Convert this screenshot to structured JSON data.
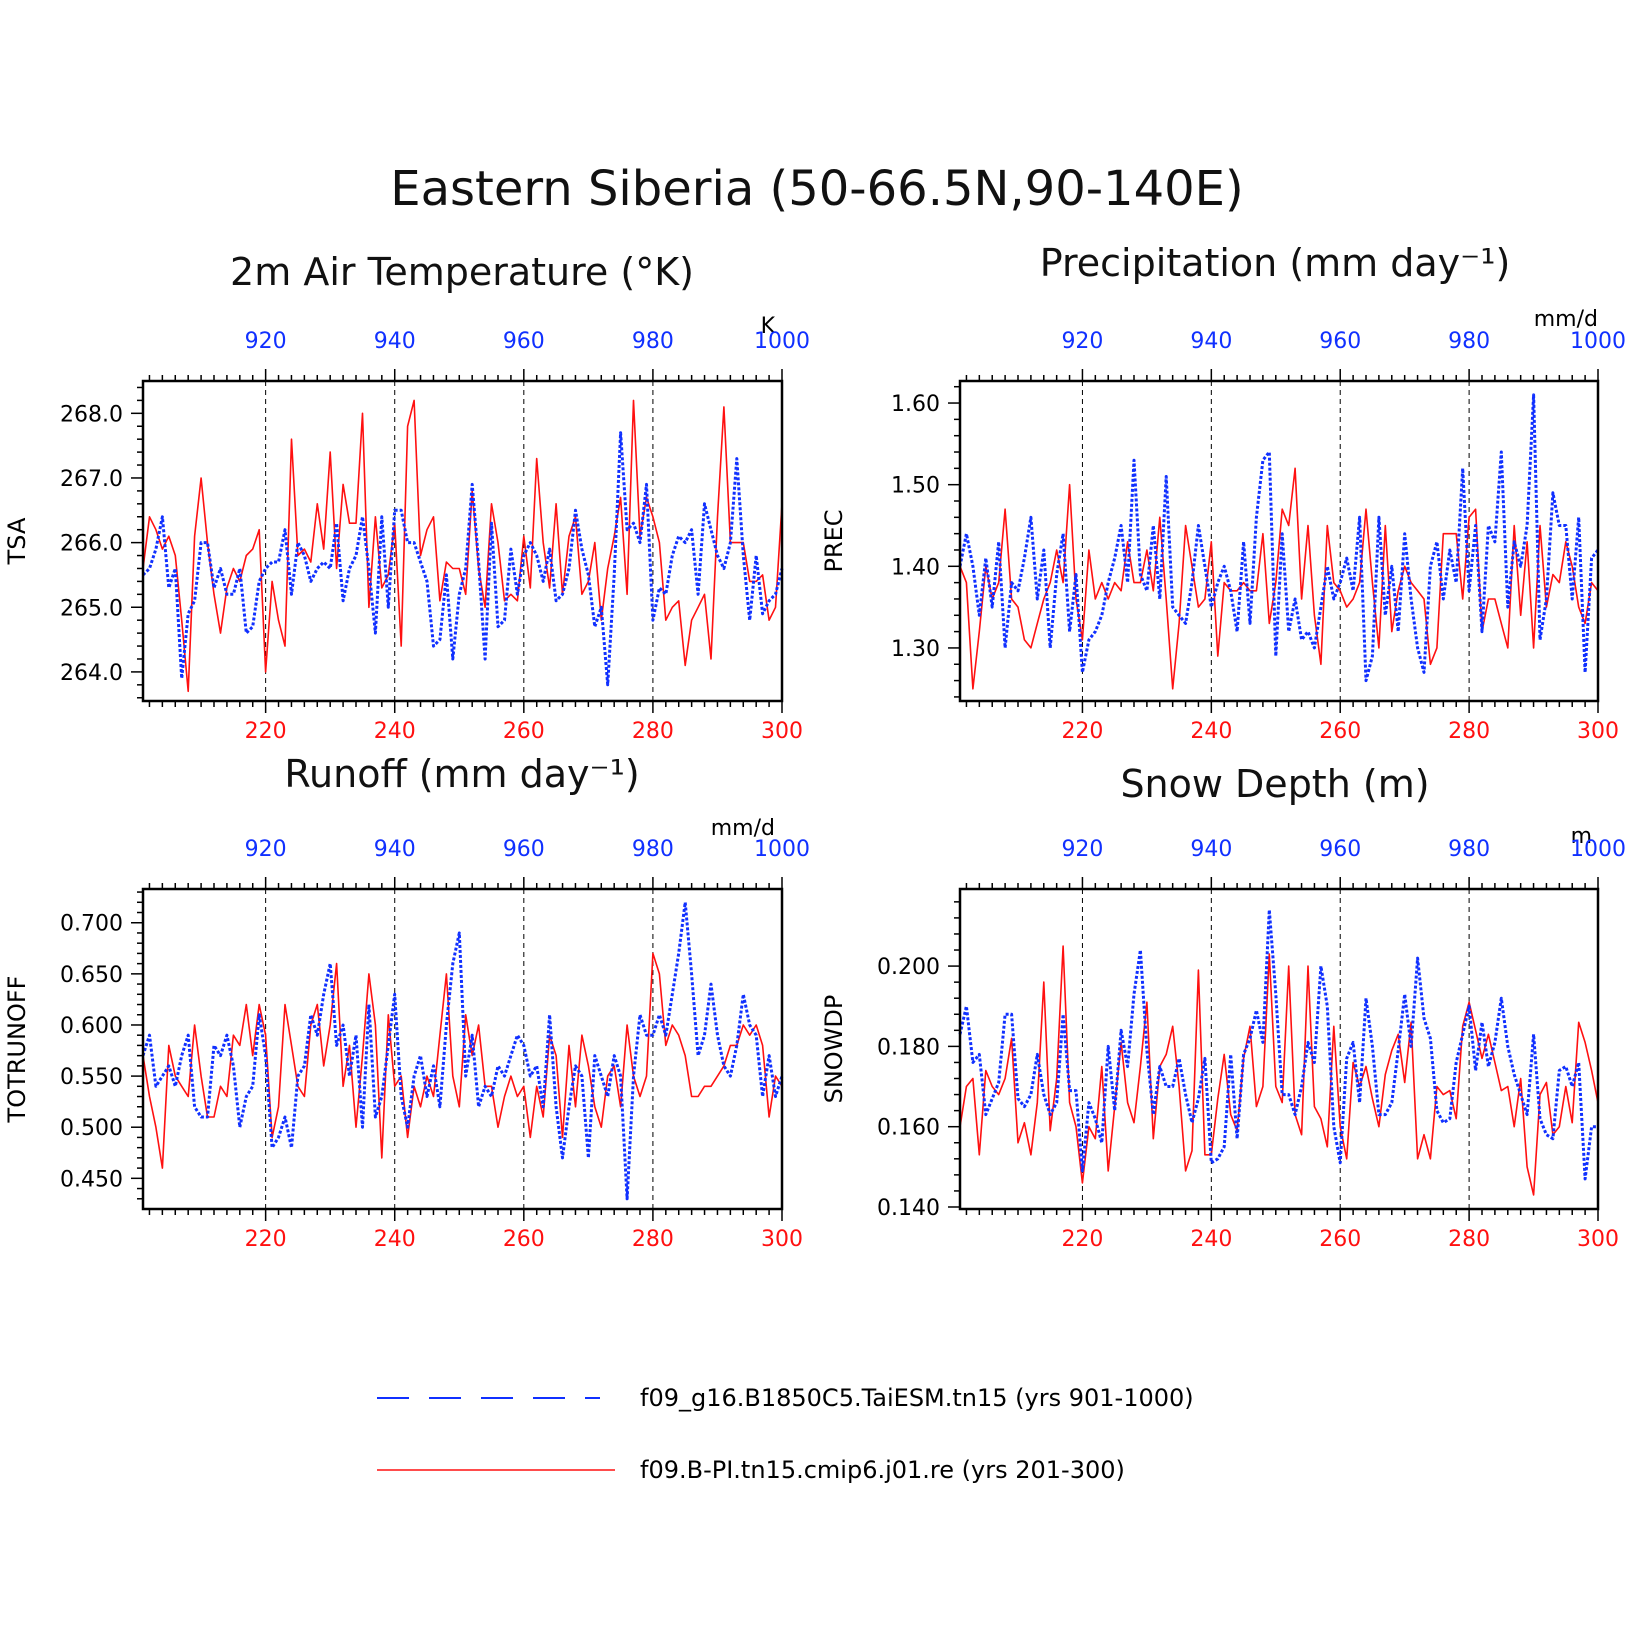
{
  "figure_title": "Eastern Siberia (50-66.5N,90-140E)",
  "colors": {
    "blue": "#1030ff",
    "red": "#ff1010",
    "axis": "#000000"
  },
  "legend": [
    {
      "label": "f09_g16.B1850C5.TaiESM.tn15 (yrs 901-1000)",
      "color": "#1030ff",
      "style": "dashed"
    },
    {
      "label": "f09.B-PI.tn15.cmip6.j01.re (yrs 201-300)",
      "color": "#ff1010",
      "style": "solid"
    }
  ],
  "chart_data": [
    {
      "type": "line",
      "title": "2m Air Temperature (°K)",
      "ylabel": "TSA",
      "units": "K",
      "x_bottom": {
        "ticks": [
          "220",
          "240",
          "260",
          "280",
          "300"
        ],
        "range": [
          201,
          300
        ]
      },
      "x_top": {
        "ticks": [
          "920",
          "940",
          "960",
          "980",
          "1000"
        ],
        "range": [
          901,
          1000
        ]
      },
      "ylim": [
        263.55,
        268.5
      ],
      "yticks": [
        264,
        265,
        266,
        267,
        268
      ],
      "ytick_labels": [
        "264.0",
        "265.0",
        "266.0",
        "267.0",
        "268.0"
      ],
      "grid_x": [
        220,
        240,
        260,
        280
      ],
      "series": [
        {
          "name": "f09.B-PI.tn15.cmip6.j01.re (yrs 201-300)",
          "color": "red",
          "values": [
            265.6,
            266.4,
            266.2,
            265.9,
            266.1,
            265.8,
            264.8,
            263.7,
            266.1,
            267.0,
            266.0,
            265.2,
            264.6,
            265.3,
            265.6,
            265.4,
            265.8,
            265.9,
            266.2,
            264.0,
            265.4,
            264.8,
            264.4,
            267.6,
            265.8,
            265.9,
            265.7,
            266.6,
            265.9,
            267.4,
            265.6,
            266.9,
            266.3,
            266.3,
            268.0,
            265.0,
            266.4,
            265.3,
            265.5,
            266.3,
            264.4,
            267.8,
            268.2,
            265.8,
            266.2,
            266.4,
            265.1,
            265.7,
            265.6,
            265.6,
            265.2,
            266.8,
            265.6,
            265.0,
            266.6,
            266.0,
            265.1,
            265.2,
            265.1,
            266.1,
            265.3,
            267.3,
            266.0,
            265.3,
            266.6,
            265.2,
            266.1,
            266.4,
            265.2,
            265.4,
            266.0,
            264.8,
            265.6,
            266.1,
            266.7,
            265.2,
            268.2,
            266.1,
            266.7,
            266.4,
            266.0,
            264.8,
            265.0,
            265.1,
            264.1,
            264.8,
            265.0,
            265.2,
            264.2,
            266.4,
            268.1,
            266.0,
            266.0,
            266.0,
            265.4,
            265.4,
            265.5,
            264.8,
            265.0,
            266.6
          ]
        },
        {
          "name": "f09_g16.B1850C5.TaiESM.tn15 (yrs 901-1000)",
          "color": "blue",
          "values": [
            265.5,
            265.6,
            265.9,
            266.4,
            265.3,
            265.6,
            263.9,
            264.9,
            265.1,
            266.0,
            266.0,
            265.3,
            265.6,
            265.2,
            265.2,
            265.6,
            264.6,
            264.7,
            265.4,
            265.6,
            265.7,
            265.7,
            266.2,
            265.2,
            266.0,
            265.8,
            265.4,
            265.6,
            265.7,
            265.6,
            266.3,
            265.1,
            265.6,
            265.8,
            266.4,
            265.6,
            264.6,
            266.4,
            265.0,
            266.5,
            266.5,
            266.0,
            266.0,
            265.7,
            265.4,
            264.4,
            264.5,
            265.5,
            264.2,
            265.2,
            265.6,
            266.9,
            265.7,
            264.2,
            266.3,
            264.7,
            264.8,
            265.9,
            265.2,
            265.8,
            266.0,
            265.8,
            265.4,
            265.9,
            265.1,
            265.2,
            265.6,
            266.5,
            265.9,
            265.5,
            264.7,
            265.0,
            263.8,
            265.5,
            267.7,
            266.2,
            266.3,
            266.0,
            266.9,
            264.8,
            265.3,
            265.2,
            265.8,
            266.1,
            266.0,
            266.2,
            265.2,
            266.6,
            266.2,
            265.8,
            265.6,
            266.0,
            267.3,
            265.8,
            264.8,
            265.8,
            264.9,
            265.1,
            265.2,
            265.6
          ]
        }
      ]
    },
    {
      "type": "line",
      "title": "Precipitation (mm day⁻¹)",
      "ylabel": "PREC",
      "units": "mm/d",
      "x_bottom": {
        "ticks": [
          "220",
          "240",
          "260",
          "280",
          "300"
        ],
        "range": [
          201,
          300
        ]
      },
      "x_top": {
        "ticks": [
          "920",
          "940",
          "960",
          "980",
          "1000"
        ],
        "range": [
          901,
          1000
        ]
      },
      "ylim": [
        1.235,
        1.627
      ],
      "yticks": [
        1.3,
        1.4,
        1.5,
        1.6
      ],
      "ytick_labels": [
        "1.30",
        "1.40",
        "1.50",
        "1.60"
      ],
      "grid_x": [
        220,
        240,
        260,
        280
      ],
      "series": [
        {
          "name": "f09.B-PI.tn15.cmip6.j01.re (yrs 201-300)",
          "color": "red",
          "values": [
            1.4,
            1.38,
            1.25,
            1.32,
            1.4,
            1.36,
            1.38,
            1.47,
            1.36,
            1.35,
            1.31,
            1.3,
            1.33,
            1.36,
            1.38,
            1.42,
            1.38,
            1.5,
            1.36,
            1.31,
            1.42,
            1.36,
            1.38,
            1.36,
            1.38,
            1.37,
            1.43,
            1.38,
            1.38,
            1.42,
            1.37,
            1.46,
            1.36,
            1.25,
            1.33,
            1.45,
            1.4,
            1.35,
            1.36,
            1.43,
            1.29,
            1.38,
            1.37,
            1.37,
            1.38,
            1.37,
            1.37,
            1.44,
            1.33,
            1.38,
            1.47,
            1.45,
            1.52,
            1.36,
            1.45,
            1.34,
            1.28,
            1.45,
            1.38,
            1.37,
            1.35,
            1.36,
            1.38,
            1.47,
            1.38,
            1.3,
            1.45,
            1.32,
            1.37,
            1.4,
            1.38,
            1.37,
            1.36,
            1.28,
            1.3,
            1.44,
            1.44,
            1.44,
            1.36,
            1.46,
            1.47,
            1.32,
            1.36,
            1.36,
            1.33,
            1.3,
            1.45,
            1.34,
            1.43,
            1.3,
            1.45,
            1.35,
            1.39,
            1.38,
            1.43,
            1.4,
            1.35,
            1.33,
            1.38,
            1.37
          ]
        },
        {
          "name": "f09_g16.B1850C5.TaiESM.tn15 (yrs 901-1000)",
          "color": "blue",
          "values": [
            1.4,
            1.44,
            1.4,
            1.34,
            1.41,
            1.35,
            1.43,
            1.3,
            1.38,
            1.37,
            1.41,
            1.46,
            1.36,
            1.42,
            1.3,
            1.39,
            1.44,
            1.32,
            1.39,
            1.27,
            1.31,
            1.32,
            1.34,
            1.38,
            1.41,
            1.45,
            1.38,
            1.53,
            1.39,
            1.37,
            1.45,
            1.36,
            1.51,
            1.35,
            1.34,
            1.33,
            1.38,
            1.45,
            1.4,
            1.35,
            1.38,
            1.4,
            1.37,
            1.32,
            1.43,
            1.33,
            1.46,
            1.53,
            1.54,
            1.29,
            1.44,
            1.32,
            1.36,
            1.31,
            1.32,
            1.3,
            1.35,
            1.4,
            1.36,
            1.38,
            1.41,
            1.37,
            1.46,
            1.26,
            1.29,
            1.46,
            1.34,
            1.4,
            1.32,
            1.44,
            1.36,
            1.3,
            1.27,
            1.4,
            1.43,
            1.36,
            1.42,
            1.38,
            1.52,
            1.37,
            1.45,
            1.32,
            1.45,
            1.43,
            1.54,
            1.35,
            1.43,
            1.4,
            1.45,
            1.61,
            1.31,
            1.36,
            1.49,
            1.45,
            1.45,
            1.36,
            1.46,
            1.27,
            1.41,
            1.42
          ]
        }
      ]
    },
    {
      "type": "line",
      "title": "Runoff (mm day⁻¹)",
      "ylabel": "TOTRUNOFF",
      "units": "mm/d",
      "x_bottom": {
        "ticks": [
          "220",
          "240",
          "260",
          "280",
          "300"
        ],
        "range": [
          201,
          300
        ]
      },
      "x_top": {
        "ticks": [
          "920",
          "940",
          "960",
          "980",
          "1000"
        ],
        "range": [
          901,
          1000
        ]
      },
      "ylim": [
        0.42,
        0.733
      ],
      "yticks": [
        0.45,
        0.5,
        0.55,
        0.6,
        0.65,
        0.7
      ],
      "ytick_labels": [
        "0.450",
        "0.500",
        "0.550",
        "0.600",
        "0.650",
        "0.700"
      ],
      "grid_x": [
        220,
        240,
        260,
        280
      ],
      "series": [
        {
          "name": "f09.B-PI.tn15.cmip6.j01.re (yrs 201-300)",
          "color": "red",
          "values": [
            0.57,
            0.53,
            0.5,
            0.46,
            0.58,
            0.55,
            0.54,
            0.53,
            0.6,
            0.55,
            0.51,
            0.51,
            0.54,
            0.53,
            0.59,
            0.58,
            0.62,
            0.57,
            0.62,
            0.59,
            0.49,
            0.52,
            0.62,
            0.58,
            0.54,
            0.53,
            0.6,
            0.62,
            0.56,
            0.6,
            0.66,
            0.54,
            0.58,
            0.5,
            0.57,
            0.65,
            0.6,
            0.47,
            0.61,
            0.54,
            0.55,
            0.49,
            0.54,
            0.52,
            0.55,
            0.53,
            0.59,
            0.65,
            0.55,
            0.52,
            0.61,
            0.57,
            0.6,
            0.54,
            0.54,
            0.5,
            0.53,
            0.55,
            0.53,
            0.54,
            0.49,
            0.54,
            0.51,
            0.59,
            0.57,
            0.49,
            0.58,
            0.52,
            0.59,
            0.56,
            0.52,
            0.5,
            0.55,
            0.56,
            0.52,
            0.6,
            0.55,
            0.53,
            0.55,
            0.67,
            0.65,
            0.58,
            0.6,
            0.59,
            0.57,
            0.53,
            0.53,
            0.54,
            0.54,
            0.55,
            0.56,
            0.58,
            0.58,
            0.6,
            0.59,
            0.6,
            0.58,
            0.51,
            0.55,
            0.54
          ]
        },
        {
          "name": "f09_g16.B1850C5.TaiESM.tn15 (yrs 901-1000)",
          "color": "blue",
          "values": [
            0.57,
            0.59,
            0.54,
            0.55,
            0.56,
            0.54,
            0.57,
            0.59,
            0.52,
            0.51,
            0.51,
            0.58,
            0.57,
            0.59,
            0.56,
            0.5,
            0.53,
            0.54,
            0.61,
            0.57,
            0.48,
            0.49,
            0.51,
            0.48,
            0.55,
            0.56,
            0.61,
            0.59,
            0.63,
            0.66,
            0.58,
            0.6,
            0.55,
            0.59,
            0.5,
            0.62,
            0.51,
            0.53,
            0.58,
            0.63,
            0.53,
            0.5,
            0.55,
            0.57,
            0.53,
            0.56,
            0.52,
            0.6,
            0.66,
            0.69,
            0.55,
            0.59,
            0.52,
            0.54,
            0.53,
            0.56,
            0.55,
            0.57,
            0.59,
            0.58,
            0.55,
            0.56,
            0.52,
            0.61,
            0.52,
            0.47,
            0.52,
            0.56,
            0.55,
            0.47,
            0.57,
            0.55,
            0.53,
            0.57,
            0.55,
            0.43,
            0.55,
            0.61,
            0.59,
            0.59,
            0.61,
            0.59,
            0.63,
            0.67,
            0.72,
            0.65,
            0.57,
            0.59,
            0.64,
            0.59,
            0.56,
            0.55,
            0.58,
            0.63,
            0.6,
            0.59,
            0.53,
            0.57,
            0.53,
            0.55
          ]
        }
      ]
    },
    {
      "type": "line",
      "title": "Snow Depth (m)",
      "ylabel": "SNOWDP",
      "units": "m",
      "x_bottom": {
        "ticks": [
          "220",
          "240",
          "260",
          "280",
          "300"
        ],
        "range": [
          201,
          300
        ]
      },
      "x_top": {
        "ticks": [
          "920",
          "940",
          "960",
          "980",
          "1000"
        ],
        "range": [
          901,
          1000
        ]
      },
      "ylim": [
        0.1395,
        0.2192
      ],
      "yticks": [
        0.14,
        0.16,
        0.18,
        0.2
      ],
      "ytick_labels": [
        "0.140",
        "0.160",
        "0.180",
        "0.200"
      ],
      "grid_x": [
        220,
        240,
        260,
        280
      ],
      "series": [
        {
          "name": "f09.B-PI.tn15.cmip6.j01.re (yrs 201-300)",
          "color": "red",
          "values": [
            0.16,
            0.17,
            0.172,
            0.153,
            0.174,
            0.17,
            0.168,
            0.172,
            0.182,
            0.156,
            0.161,
            0.153,
            0.166,
            0.196,
            0.159,
            0.172,
            0.205,
            0.166,
            0.16,
            0.146,
            0.16,
            0.157,
            0.175,
            0.149,
            0.165,
            0.181,
            0.166,
            0.161,
            0.175,
            0.191,
            0.157,
            0.175,
            0.178,
            0.185,
            0.17,
            0.149,
            0.154,
            0.199,
            0.153,
            0.153,
            0.167,
            0.178,
            0.163,
            0.159,
            0.177,
            0.185,
            0.165,
            0.17,
            0.203,
            0.17,
            0.166,
            0.2,
            0.163,
            0.158,
            0.2,
            0.165,
            0.162,
            0.155,
            0.185,
            0.16,
            0.152,
            0.176,
            0.17,
            0.175,
            0.167,
            0.16,
            0.173,
            0.179,
            0.183,
            0.171,
            0.186,
            0.152,
            0.158,
            0.152,
            0.17,
            0.168,
            0.169,
            0.162,
            0.185,
            0.191,
            0.184,
            0.177,
            0.183,
            0.176,
            0.169,
            0.17,
            0.16,
            0.172,
            0.15,
            0.143,
            0.168,
            0.171,
            0.158,
            0.16,
            0.17,
            0.161,
            0.186,
            0.181,
            0.174,
            0.166
          ]
        },
        {
          "name": "f09_g16.B1850C5.TaiESM.tn15 (yrs 901-1000)",
          "color": "blue",
          "values": [
            0.183,
            0.19,
            0.176,
            0.178,
            0.163,
            0.167,
            0.171,
            0.188,
            0.188,
            0.167,
            0.165,
            0.168,
            0.178,
            0.168,
            0.163,
            0.166,
            0.188,
            0.169,
            0.169,
            0.149,
            0.166,
            0.162,
            0.156,
            0.18,
            0.164,
            0.184,
            0.175,
            0.193,
            0.204,
            0.179,
            0.163,
            0.175,
            0.17,
            0.17,
            0.177,
            0.168,
            0.161,
            0.167,
            0.177,
            0.151,
            0.152,
            0.155,
            0.178,
            0.157,
            0.178,
            0.182,
            0.189,
            0.181,
            0.214,
            0.193,
            0.168,
            0.168,
            0.163,
            0.17,
            0.181,
            0.176,
            0.2,
            0.19,
            0.16,
            0.151,
            0.177,
            0.181,
            0.166,
            0.192,
            0.18,
            0.163,
            0.163,
            0.166,
            0.179,
            0.193,
            0.18,
            0.202,
            0.187,
            0.182,
            0.164,
            0.161,
            0.162,
            0.176,
            0.183,
            0.19,
            0.174,
            0.186,
            0.175,
            0.181,
            0.192,
            0.18,
            0.173,
            0.168,
            0.163,
            0.183,
            0.162,
            0.158,
            0.157,
            0.174,
            0.175,
            0.17,
            0.176,
            0.147,
            0.16,
            0.16
          ]
        }
      ]
    }
  ]
}
